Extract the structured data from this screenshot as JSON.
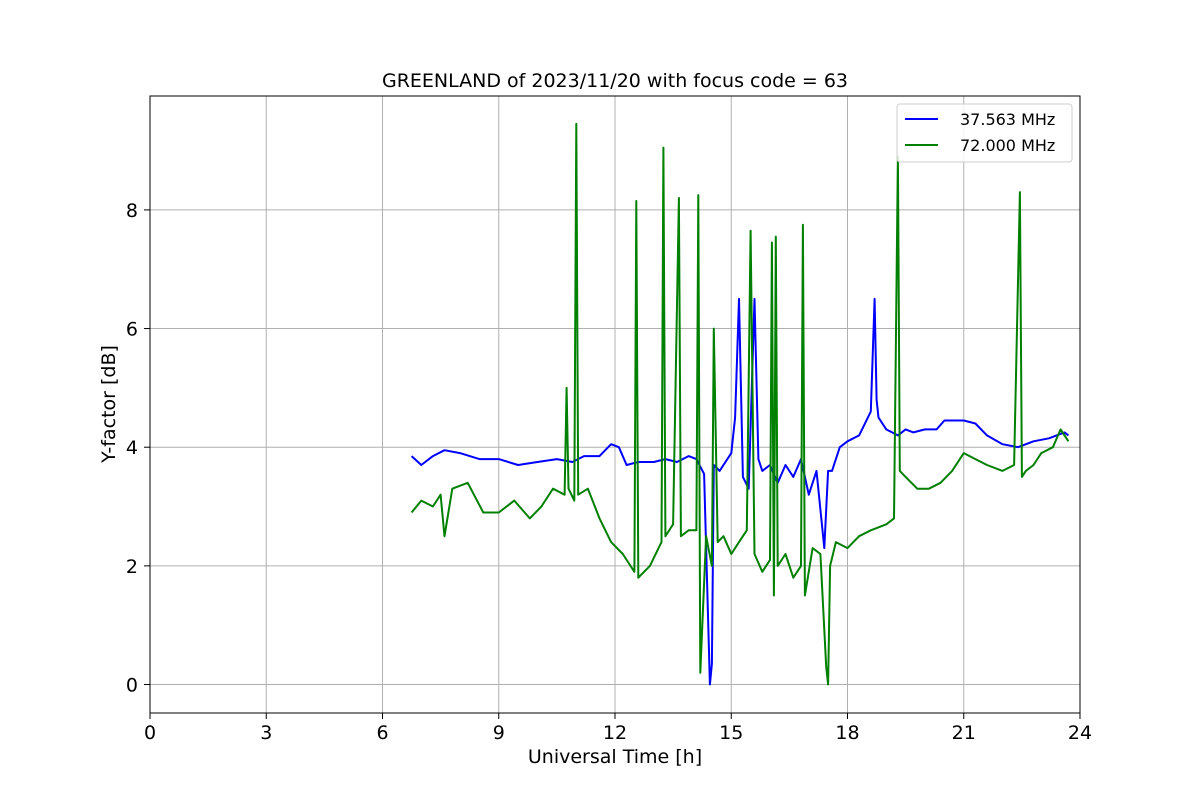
{
  "chart_data": {
    "type": "line",
    "title": "GREENLAND of 2023/11/20 with focus code = 63",
    "xlabel": "Universal Time [h]",
    "ylabel": "Y-factor [dB]",
    "xlim": [
      0,
      24
    ],
    "ylim": [
      -0.48,
      9.92
    ],
    "xticks": [
      0,
      3,
      6,
      9,
      12,
      15,
      18,
      21,
      24
    ],
    "yticks": [
      0,
      2,
      4,
      6,
      8
    ],
    "grid": true,
    "legend_position": "top-right",
    "series": [
      {
        "name": "37.563 MHz",
        "color": "#0000ff",
        "x": [
          6.75,
          7.0,
          7.3,
          7.6,
          8.0,
          8.5,
          9.0,
          9.5,
          10.0,
          10.5,
          10.9,
          11.2,
          11.6,
          11.9,
          12.1,
          12.3,
          12.6,
          13.0,
          13.3,
          13.6,
          13.9,
          14.1,
          14.3,
          14.45,
          14.5,
          14.55,
          14.7,
          15.0,
          15.1,
          15.2,
          15.3,
          15.45,
          15.6,
          15.7,
          15.8,
          16.0,
          16.2,
          16.4,
          16.6,
          16.8,
          17.0,
          17.2,
          17.4,
          17.5,
          17.6,
          17.8,
          18.0,
          18.3,
          18.6,
          18.7,
          18.75,
          18.8,
          19.0,
          19.3,
          19.5,
          19.7,
          20.0,
          20.3,
          20.5,
          20.8,
          21.0,
          21.3,
          21.6,
          22.0,
          22.4,
          22.8,
          23.2,
          23.6,
          23.7
        ],
        "y": [
          3.85,
          3.7,
          3.85,
          3.95,
          3.9,
          3.8,
          3.8,
          3.7,
          3.75,
          3.8,
          3.75,
          3.85,
          3.85,
          4.05,
          4.0,
          3.7,
          3.75,
          3.75,
          3.8,
          3.75,
          3.85,
          3.8,
          3.55,
          0.0,
          0.35,
          3.7,
          3.6,
          3.9,
          4.5,
          6.5,
          3.5,
          3.3,
          6.5,
          3.8,
          3.6,
          3.7,
          3.4,
          3.7,
          3.5,
          3.8,
          3.2,
          3.6,
          2.3,
          3.6,
          3.6,
          4.0,
          4.1,
          4.2,
          4.6,
          6.5,
          4.8,
          4.5,
          4.3,
          4.2,
          4.3,
          4.25,
          4.3,
          4.3,
          4.45,
          4.45,
          4.45,
          4.4,
          4.2,
          4.05,
          4.0,
          4.1,
          4.15,
          4.25,
          4.2
        ]
      },
      {
        "name": "72.000 MHz",
        "color": "#008000",
        "x": [
          6.75,
          7.0,
          7.3,
          7.5,
          7.6,
          7.8,
          8.2,
          8.6,
          9.0,
          9.4,
          9.8,
          10.1,
          10.4,
          10.7,
          10.75,
          10.8,
          10.95,
          11.0,
          11.05,
          11.3,
          11.6,
          11.9,
          12.2,
          12.5,
          12.55,
          12.6,
          12.9,
          13.2,
          13.25,
          13.3,
          13.5,
          13.65,
          13.7,
          13.9,
          14.1,
          14.15,
          14.2,
          14.35,
          14.5,
          14.55,
          14.65,
          14.8,
          15.0,
          15.2,
          15.4,
          15.5,
          15.6,
          15.8,
          16.0,
          16.05,
          16.1,
          16.15,
          16.2,
          16.4,
          16.6,
          16.8,
          16.85,
          16.9,
          17.1,
          17.3,
          17.45,
          17.5,
          17.55,
          17.7,
          18.0,
          18.3,
          18.6,
          19.0,
          19.2,
          19.3,
          19.35,
          19.5,
          19.8,
          20.1,
          20.4,
          20.7,
          21.0,
          21.3,
          21.6,
          22.0,
          22.3,
          22.45,
          22.5,
          22.6,
          22.8,
          23.0,
          23.3,
          23.5,
          23.7
        ],
        "y": [
          2.9,
          3.1,
          3.0,
          3.2,
          2.5,
          3.3,
          3.4,
          2.9,
          2.9,
          3.1,
          2.8,
          3.0,
          3.3,
          3.2,
          5.0,
          3.3,
          3.1,
          9.45,
          3.2,
          3.3,
          2.8,
          2.4,
          2.2,
          1.9,
          8.15,
          1.8,
          2.0,
          2.4,
          9.05,
          2.5,
          2.7,
          8.2,
          2.5,
          2.6,
          2.6,
          8.25,
          0.2,
          2.5,
          2.0,
          6.0,
          2.4,
          2.5,
          2.2,
          2.4,
          2.6,
          7.65,
          2.2,
          1.9,
          2.1,
          7.45,
          1.5,
          7.55,
          2.0,
          2.2,
          1.8,
          2.0,
          7.75,
          1.5,
          2.3,
          2.2,
          0.3,
          0.0,
          2.0,
          2.4,
          2.3,
          2.5,
          2.6,
          2.7,
          2.8,
          8.9,
          3.6,
          3.5,
          3.3,
          3.3,
          3.4,
          3.6,
          3.9,
          3.8,
          3.7,
          3.6,
          3.7,
          8.3,
          3.5,
          3.6,
          3.7,
          3.9,
          4.0,
          4.3,
          4.1
        ]
      }
    ]
  }
}
